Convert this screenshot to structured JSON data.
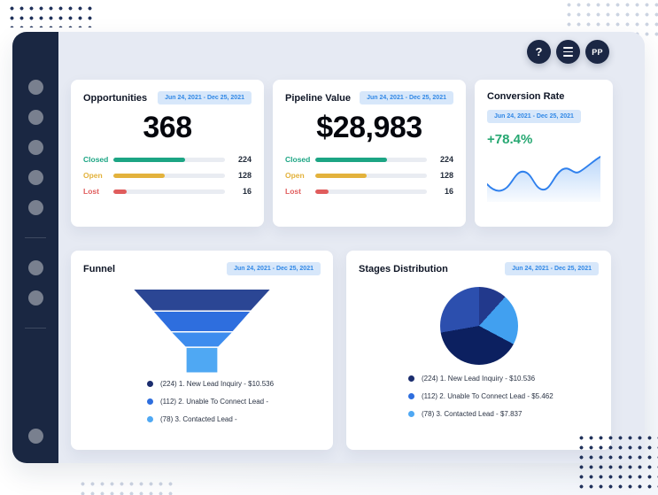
{
  "topbar": {
    "help_label": "?",
    "avatar_initials": "PP"
  },
  "cards": {
    "opportunities": {
      "title": "Opportunities",
      "date_range": "Jun 24, 2021 -  Dec 25, 2021",
      "total": "368",
      "rows": [
        {
          "label": "Closed",
          "value": "224",
          "pct": 64
        },
        {
          "label": "Open",
          "value": "128",
          "pct": 46
        },
        {
          "label": "Lost",
          "value": "16",
          "pct": 12
        }
      ]
    },
    "pipeline": {
      "title": "Pipeline Value",
      "date_range": "Jun 24, 2021 -  Dec 25, 2021",
      "total": "$28,983",
      "rows": [
        {
          "label": "Closed",
          "value": "224",
          "pct": 64
        },
        {
          "label": "Open",
          "value": "128",
          "pct": 46
        },
        {
          "label": "Lost",
          "value": "16",
          "pct": 12
        }
      ]
    },
    "conversion": {
      "title": "Conversion Rate",
      "date_range": "Jun 24, 2021 -  Dec 25, 2021",
      "rate": "+78.4%"
    },
    "funnel": {
      "title": "Funnel",
      "date_range": "Jun 24, 2021 -  Dec 25, 2021",
      "legend": [
        "(224) 1. New Lead Inquiry - $10.536",
        "(112) 2. Unable To Connect Lead -",
        "(78) 3. Contacted Lead -"
      ]
    },
    "stages": {
      "title": "Stages Distribution",
      "date_range": "Jun 24, 2021 -  Dec 25, 2021",
      "legend": [
        "(224) 1. New Lead Inquiry - $10.536",
        "(112) 2. Unable To Connect Lead - $5.462",
        "(78) 3. Contacted Lead - $7.837"
      ]
    }
  },
  "colors": {
    "navy": "#1b2744",
    "accent_blue": "#2f80ed",
    "badge_bg": "#d7e7fa",
    "badge_text": "#3188e6",
    "green": "#1ca584",
    "yellow": "#e3b23c",
    "red": "#e05c5c",
    "rate_green": "#27a872",
    "funnel_palette": [
      "#2b4694",
      "#2e6ede",
      "#3d8cee",
      "#4fa8f3"
    ],
    "pie_palette": [
      "#2c4fae",
      "#22398c",
      "#41a0f0",
      "#0c2060"
    ]
  },
  "chart_data": [
    {
      "type": "bar",
      "title": "Opportunities",
      "total": 368,
      "categories": [
        "Closed",
        "Open",
        "Lost"
      ],
      "values": [
        224,
        128,
        16
      ]
    },
    {
      "type": "bar",
      "title": "Pipeline Value",
      "total_label": "$28,983",
      "categories": [
        "Closed",
        "Open",
        "Lost"
      ],
      "values": [
        224,
        128,
        16
      ]
    },
    {
      "type": "line",
      "title": "Conversion Rate",
      "headline": "+78.4%",
      "x": [
        0,
        1,
        2,
        3,
        4,
        5,
        6,
        7,
        8,
        9
      ],
      "y": [
        20,
        12,
        34,
        32,
        14,
        36,
        38,
        34,
        48,
        52
      ]
    },
    {
      "type": "funnel",
      "title": "Funnel",
      "stages": [
        {
          "count": 224,
          "label": "1. New Lead Inquiry",
          "amount": "$10.536"
        },
        {
          "count": 112,
          "label": "2. Unable To Connect Lead",
          "amount": ""
        },
        {
          "count": 78,
          "label": "3. Contacted Lead",
          "amount": ""
        }
      ]
    },
    {
      "type": "pie",
      "title": "Stages Distribution",
      "slices": [
        {
          "count": 224,
          "label": "1. New Lead Inquiry",
          "amount": "$10.536"
        },
        {
          "count": 112,
          "label": "2. Unable To Connect Lead",
          "amount": "$5.462"
        },
        {
          "count": 78,
          "label": "3. Contacted Lead",
          "amount": "$7.837"
        }
      ]
    }
  ]
}
